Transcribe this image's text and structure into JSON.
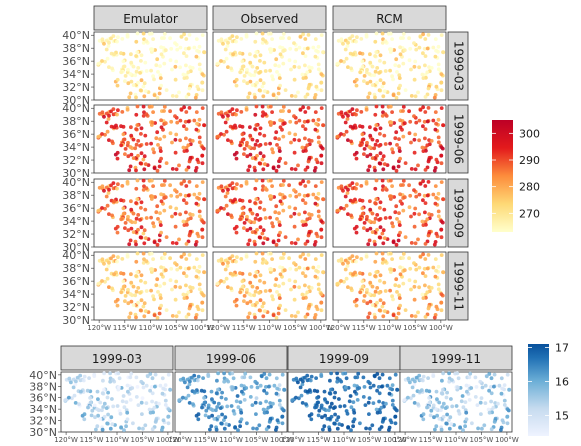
{
  "chart_data": [
    {
      "type": "scatter",
      "description": "Faceted map scatter: station temperatures over the southwestern US, rows = dates, columns = data source",
      "columns": [
        "Emulator",
        "Observed",
        "RCM"
      ],
      "rows": [
        "1999-03",
        "1999-06",
        "1999-09",
        "1999-11"
      ],
      "x_ticks": [
        "120°W",
        "115°W",
        "110°W",
        "105°W",
        "100°W"
      ],
      "y_ticks": [
        "30°N",
        "32°N",
        "34°N",
        "36°N",
        "38°N",
        "40°N"
      ],
      "xlim": [
        -121,
        -99
      ],
      "ylim": [
        30,
        40.5
      ],
      "row_mean_values": [
        268,
        292,
        289,
        276
      ],
      "colorbar": {
        "palette": "YlOrRd",
        "ticks": [
          270,
          280,
          290,
          300
        ],
        "range": [
          263,
          305
        ],
        "colors": [
          "#ffffcc",
          "#fed976",
          "#fd8d3c",
          "#e31a1c",
          "#bd0026"
        ]
      }
    },
    {
      "type": "scatter",
      "description": "Map scatter of a second quantity per date",
      "panels": [
        "1999-03",
        "1999-06",
        "1999-09",
        "1999-11"
      ],
      "x_ticks": [
        "120°W",
        "115°W",
        "110°W",
        "105°W",
        "100°W"
      ],
      "y_ticks": [
        "30°N",
        "32°N",
        "34°N",
        "36°N",
        "38°N",
        "40°N"
      ],
      "xlim": [
        -121,
        -99
      ],
      "ylim": [
        30,
        40.5
      ],
      "panel_mean_values": [
        15.1,
        16.0,
        16.6,
        15.3
      ],
      "colorbar": {
        "palette": "Blues",
        "ticks": [
          15,
          16,
          17
        ],
        "range": [
          14.4,
          17.1
        ],
        "colors": [
          "#eff3ff",
          "#c6dbef",
          "#6baed6",
          "#2171b5",
          "#08519c"
        ]
      }
    }
  ]
}
